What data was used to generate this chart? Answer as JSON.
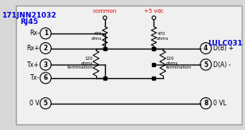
{
  "title_left_1": "171JNN21032",
  "title_left_2": "RJ45",
  "title_right": "LULC031",
  "label_common": "common",
  "label_vdc": "+5 vdc",
  "color_blue": "#0000DD",
  "color_red": "#DD0000",
  "color_black": "#000000",
  "color_bg": "#D8D8D8",
  "color_white": "#FFFFFF",
  "border_color": "#888888"
}
